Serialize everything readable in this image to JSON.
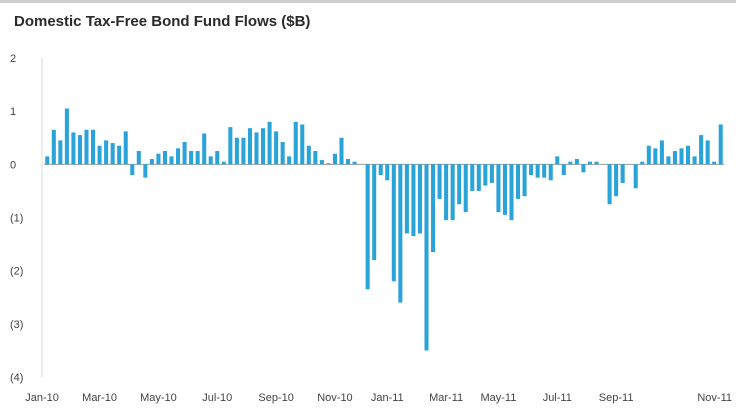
{
  "chart_data": {
    "type": "bar",
    "title": "Domestic Tax-Free Bond Fund Flows ($B)",
    "xlabel": "",
    "ylabel": "",
    "ylim": [
      -4,
      2
    ],
    "yticks": [
      {
        "value": 2,
        "label": "2"
      },
      {
        "value": 1,
        "label": "1"
      },
      {
        "value": 0,
        "label": "0"
      },
      {
        "value": -1,
        "label": "(1)"
      },
      {
        "value": -2,
        "label": "(2)"
      },
      {
        "value": -3,
        "label": "(3)"
      },
      {
        "value": -4,
        "label": "(4)"
      }
    ],
    "xtick_labels": [
      {
        "week": 0,
        "label": "Jan-10"
      },
      {
        "week": 8,
        "label": "Mar-10"
      },
      {
        "week": 17,
        "label": "May-10"
      },
      {
        "week": 26,
        "label": "Jul-10"
      },
      {
        "week": 35,
        "label": "Sep-10"
      },
      {
        "week": 44,
        "label": "Nov-10"
      },
      {
        "week": 52,
        "label": "Jan-11"
      },
      {
        "week": 61,
        "label": "Mar-11"
      },
      {
        "week": 69,
        "label": "May-11"
      },
      {
        "week": 78,
        "label": "Jul-11"
      },
      {
        "week": 87,
        "label": "Sep-11"
      },
      {
        "week": 95,
        "label": "Nov-11"
      }
    ],
    "bar_color": "#2aa3d8",
    "grid": false,
    "legend": "none",
    "values": [
      0.15,
      0.65,
      0.45,
      1.05,
      0.6,
      0.55,
      0.65,
      0.65,
      0.35,
      0.45,
      0.4,
      0.35,
      0.62,
      -0.2,
      0.25,
      -0.25,
      0.1,
      0.2,
      0.25,
      0.15,
      0.3,
      0.42,
      0.25,
      0.25,
      0.58,
      0.15,
      0.25,
      0.05,
      0.7,
      0.5,
      0.5,
      0.68,
      0.6,
      0.68,
      0.8,
      0.62,
      0.42,
      0.15,
      0.8,
      0.75,
      0.35,
      0.25,
      0.08,
      0.02,
      0.2,
      0.5,
      0.1,
      0.05,
      0.0,
      -2.35,
      -1.8,
      -0.2,
      -0.3,
      -2.2,
      -2.6,
      -1.3,
      -1.35,
      -1.3,
      -3.5,
      -1.65,
      -0.65,
      -1.05,
      -1.05,
      -0.75,
      -0.9,
      -0.5,
      -0.5,
      -0.4,
      -0.35,
      -0.9,
      -0.95,
      -1.05,
      -0.65,
      -0.6,
      -0.2,
      -0.25,
      -0.25,
      -0.3,
      0.15,
      -0.2,
      0.05,
      0.1,
      -0.15,
      0.05,
      0.05,
      0.0,
      -0.75,
      -0.6,
      -0.35,
      0.0,
      -0.45,
      0.05,
      0.35,
      0.3,
      0.45,
      0.15,
      0.25,
      0.3,
      0.35,
      0.15,
      0.55,
      0.45,
      0.05,
      0.75
    ]
  }
}
